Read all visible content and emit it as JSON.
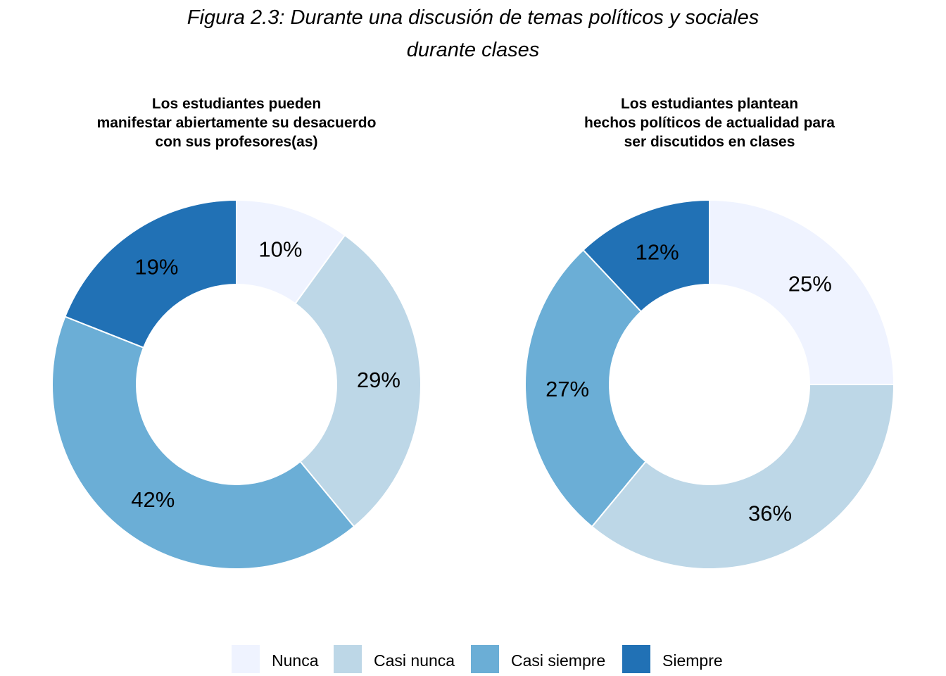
{
  "title": {
    "line1": "Figura 2.3: Durante una discusión de temas políticos y sociales",
    "line2": "durante clases"
  },
  "colors": {
    "nunca": "#eff3ff",
    "casi_nunca": "#bdd7e7",
    "casi_siempre": "#6baed6",
    "siempre": "#2171b5"
  },
  "legend": [
    {
      "label": "Nunca",
      "color": "#eff3ff"
    },
    {
      "label": "Casi nunca",
      "color": "#bdd7e7"
    },
    {
      "label": "Casi siempre",
      "color": "#6baed6"
    },
    {
      "label": "Siempre",
      "color": "#2171b5"
    }
  ],
  "chart_data": [
    {
      "type": "pie",
      "donut": true,
      "title": [
        "Los estudiantes pueden",
        "manifestar abiertamente su desacuerdo",
        "con sus profesores(as)"
      ],
      "categories": [
        "Nunca",
        "Casi nunca",
        "Casi siempre",
        "Siempre"
      ],
      "values": [
        10,
        29,
        42,
        19
      ],
      "labels": [
        "10%",
        "29%",
        "42%",
        "19%"
      ]
    },
    {
      "type": "pie",
      "donut": true,
      "title": [
        "Los estudiantes plantean",
        "hechos políticos de actualidad para",
        "ser discutidos en clases"
      ],
      "categories": [
        "Nunca",
        "Casi nunca",
        "Casi siempre",
        "Siempre"
      ],
      "values": [
        25,
        36,
        27,
        12
      ],
      "labels": [
        "25%",
        "36%",
        "27%",
        "12%"
      ]
    }
  ]
}
